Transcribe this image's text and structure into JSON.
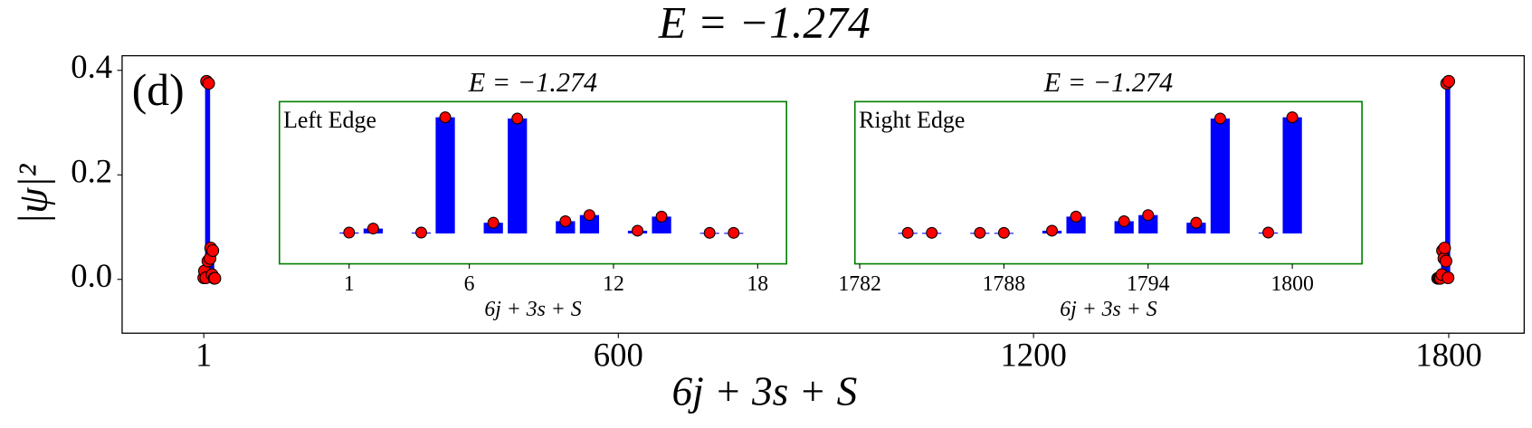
{
  "chart_data": [
    {
      "type": "bar",
      "title": "E = −1.274",
      "panel_label": "(d)",
      "xlabel": "6j + 3s + S",
      "ylabel": "|ψ|²",
      "x": [
        1,
        2,
        4,
        5,
        7,
        8,
        10,
        11,
        13,
        14,
        16,
        17,
        1784,
        1785,
        1787,
        1788,
        1790,
        1791,
        1793,
        1794,
        1796,
        1797,
        1799,
        1800
      ],
      "values": [
        0.003,
        0.016,
        0.003,
        0.379,
        0.035,
        0.375,
        0.04,
        0.06,
        0.009,
        0.055,
        0.002,
        0.002,
        0.002,
        0.002,
        0.002,
        0.002,
        0.009,
        0.055,
        0.04,
        0.06,
        0.035,
        0.375,
        0.003,
        0.379
      ],
      "xlim": [
        -117,
        1909
      ],
      "ylim": [
        -0.103,
        0.428
      ],
      "xticks": [
        1,
        600,
        1200,
        1800
      ],
      "yticks": [
        {
          "value": 0,
          "label": "0.0"
        },
        {
          "value": 0.2,
          "label": "0.2"
        },
        {
          "value": 0.4,
          "label": "0.4"
        }
      ],
      "bar_color": "#0000ff",
      "marker_color": "#ff0000",
      "frame_color": "#000000"
    },
    {
      "type": "bar",
      "title": "E = −1.274",
      "annotation": "Left Edge",
      "xlabel": "6j + 3s + S",
      "x": [
        1,
        2,
        4,
        5,
        7,
        8,
        10,
        11,
        13,
        14,
        16,
        17
      ],
      "values": [
        0.003,
        0.016,
        0.003,
        0.379,
        0.035,
        0.375,
        0.04,
        0.06,
        0.009,
        0.055,
        0.002,
        0.002
      ],
      "xlim": [
        -1.9,
        19.2
      ],
      "ylim": [
        -0.099,
        0.43
      ],
      "xticks": [
        1,
        6,
        12,
        18
      ],
      "bar_color": "#0000ff",
      "marker_color": "#ff0000",
      "frame_color": "#008000",
      "annotation_color": "#a00000"
    },
    {
      "type": "bar",
      "title": "E = −1.274",
      "annotation": "Right Edge",
      "xlabel": "6j + 3s + S",
      "x": [
        1784,
        1785,
        1787,
        1788,
        1790,
        1791,
        1793,
        1794,
        1796,
        1797,
        1799,
        1800
      ],
      "values": [
        0.002,
        0.002,
        0.002,
        0.002,
        0.009,
        0.055,
        0.04,
        0.06,
        0.035,
        0.375,
        0.003,
        0.379
      ],
      "xlim": [
        1781.8,
        1802.9
      ],
      "ylim": [
        -0.099,
        0.43
      ],
      "xticks": [
        1782,
        1788,
        1794,
        1800
      ],
      "bar_color": "#0000ff",
      "marker_color": "#ff0000",
      "frame_color": "#008000",
      "annotation_color": "#a00000"
    }
  ]
}
